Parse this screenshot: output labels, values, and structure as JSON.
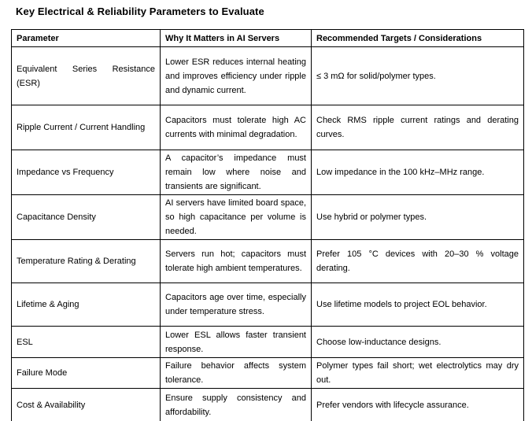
{
  "title": "Key Electrical & Reliability Parameters to Evaluate",
  "colors": {
    "background": "#ffffff",
    "text": "#000000",
    "table_border": "#000000"
  },
  "table": {
    "headers": {
      "parameter": "Parameter",
      "why": "Why It Matters in AI Servers",
      "target": "Recommended Targets / Considerations"
    },
    "rows": [
      {
        "parameter": "Equivalent Series Resistance (ESR)",
        "why": "Lower ESR reduces internal heating and improves efficiency under ripple and dynamic current.",
        "target": "≤ 3 mΩ for solid/polymer types."
      },
      {
        "parameter": "Ripple Current / Current Handling",
        "why": "Capacitors must tolerate high AC currents with minimal degradation.",
        "target": "Check RMS ripple current ratings and derating curves."
      },
      {
        "parameter": "Impedance vs Frequency",
        "why": "A capacitor’s impedance must remain low where noise and transients are significant.",
        "target": "Low impedance in the 100 kHz–MHz range."
      },
      {
        "parameter": "Capacitance Density",
        "why": "AI servers have limited board space, so high capacitance per volume is needed.",
        "target": "Use hybrid or polymer types."
      },
      {
        "parameter": "Temperature Rating & Derating",
        "why": "Servers run hot; capacitors must tolerate high ambient temperatures.",
        "target": "Prefer 105 °C devices with 20–30 % voltage derating."
      },
      {
        "parameter": "Lifetime & Aging",
        "why": "Capacitors age over time, especially under temperature stress.",
        "target": "Use lifetime models to project EOL behavior."
      },
      {
        "parameter": "ESL",
        "why": "Lower ESL allows faster transient response.",
        "target": "Choose low-inductance designs."
      },
      {
        "parameter": "Failure Mode",
        "why": "Failure behavior affects system tolerance.",
        "target": "Polymer types fail short; wet electrolytics may dry out."
      },
      {
        "parameter": "Cost & Availability",
        "why": "Ensure supply consistency and affordability.",
        "target": "Prefer vendors with lifecycle assurance."
      }
    ]
  }
}
